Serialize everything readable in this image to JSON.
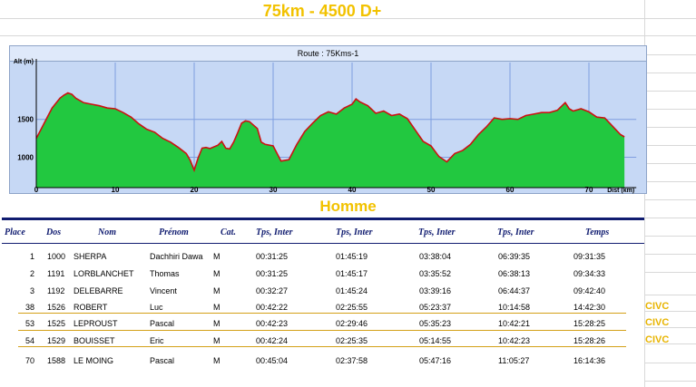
{
  "page_title": "75km - 4500 D+",
  "chart_data": {
    "type": "area",
    "title": "Route : 75Kms-1",
    "ylabel": "Alt (m)",
    "xlabel": "Dist (km)",
    "xlim": [
      0,
      76
    ],
    "ylim": [
      600,
      2250
    ],
    "x_ticks": [
      0,
      10,
      20,
      30,
      40,
      50,
      60,
      70
    ],
    "y_ticks": [
      1000,
      1500
    ],
    "grid": true,
    "fill_color": "#22c840",
    "line_color": "#cc1111",
    "series": [
      {
        "x": [
          0,
          0.5,
          1,
          2,
          3,
          3.5,
          4,
          4.5,
          5,
          6,
          7,
          8,
          9,
          10,
          11,
          12,
          13,
          14,
          15,
          16,
          17,
          18,
          19,
          19.5,
          20,
          20.5,
          21,
          21.5,
          22,
          23,
          23.5,
          24,
          24.5,
          25,
          25.5,
          26,
          26.5,
          27,
          28,
          28.5,
          29,
          30,
          31,
          32,
          33,
          34,
          35,
          36,
          37,
          38,
          39,
          40,
          40.5,
          41,
          42,
          43,
          44,
          45,
          46,
          47,
          48,
          49,
          50,
          51,
          52,
          53,
          54,
          55,
          56,
          57,
          58,
          59,
          60,
          61,
          62,
          63,
          64,
          65,
          66,
          67,
          67.5,
          68,
          69,
          70,
          71,
          72,
          73,
          74,
          74.5
        ],
        "y": [
          1250,
          1350,
          1450,
          1650,
          1780,
          1820,
          1850,
          1830,
          1780,
          1720,
          1700,
          1680,
          1650,
          1640,
          1590,
          1530,
          1440,
          1370,
          1330,
          1250,
          1200,
          1130,
          1050,
          960,
          830,
          990,
          1120,
          1130,
          1115,
          1160,
          1210,
          1120,
          1110,
          1200,
          1320,
          1450,
          1480,
          1470,
          1380,
          1200,
          1170,
          1150,
          950,
          970,
          1170,
          1340,
          1450,
          1550,
          1600,
          1570,
          1650,
          1700,
          1770,
          1730,
          1680,
          1580,
          1610,
          1550,
          1570,
          1510,
          1360,
          1210,
          1150,
          1010,
          940,
          1050,
          1090,
          1170,
          1300,
          1400,
          1520,
          1500,
          1510,
          1500,
          1550,
          1570,
          1590,
          1590,
          1620,
          1720,
          1640,
          1610,
          1640,
          1600,
          1530,
          1520,
          1410,
          1300,
          1270
        ]
      }
    ]
  },
  "section_title": "Homme",
  "table": {
    "headers": [
      "Place",
      "Dos",
      "Nom",
      "Prénom",
      "Cat.",
      "Tps, Inter",
      "Tps, Inter",
      "Tps, Inter",
      "Tps, Inter",
      "Temps"
    ],
    "rows": [
      {
        "place": "1",
        "dos": "1000",
        "nom": "SHERPA",
        "prenom": "Dachhiri Dawa",
        "cat": "M",
        "t1": "00:31:25",
        "t2": "01:45:19",
        "t3": "03:38:04",
        "t4": "06:39:35",
        "temps": "09:31:35",
        "club": ""
      },
      {
        "place": "2",
        "dos": "1191",
        "nom": "LORBLANCHET",
        "prenom": "Thomas",
        "cat": "M",
        "t1": "00:31:25",
        "t2": "01:45:17",
        "t3": "03:35:52",
        "t4": "06:38:13",
        "temps": "09:34:33",
        "club": ""
      },
      {
        "place": "3",
        "dos": "1192",
        "nom": "DELEBARRE",
        "prenom": "Vincent",
        "cat": "M",
        "t1": "00:32:27",
        "t2": "01:45:24",
        "t3": "03:39:16",
        "t4": "06:44:37",
        "temps": "09:42:40",
        "club": ""
      },
      {
        "place": "38",
        "dos": "1526",
        "nom": "ROBERT",
        "prenom": "Luc",
        "cat": "M",
        "t1": "00:42:22",
        "t2": "02:25:55",
        "t3": "05:23:37",
        "t4": "10:14:58",
        "temps": "14:42:30",
        "club": "CIVC"
      },
      {
        "place": "53",
        "dos": "1525",
        "nom": "LEPROUST",
        "prenom": "Pascal",
        "cat": "M",
        "t1": "00:42:23",
        "t2": "02:29:46",
        "t3": "05:35:23",
        "t4": "10:42:21",
        "temps": "15:28:25",
        "club": "CIVC"
      },
      {
        "place": "54",
        "dos": "1529",
        "nom": "BOUISSET",
        "prenom": "Eric",
        "cat": "M",
        "t1": "00:42:24",
        "t2": "02:25:35",
        "t3": "05:14:55",
        "t4": "10:42:23",
        "temps": "15:28:26",
        "club": "CIVC"
      },
      {
        "place": "70",
        "dos": "1588",
        "nom": "LE MOING",
        "prenom": "Pascal",
        "cat": "M",
        "t1": "00:45:04",
        "t2": "02:37:58",
        "t3": "05:47:16",
        "t4": "11:05:27",
        "temps": "16:14:36",
        "club": ""
      }
    ]
  }
}
